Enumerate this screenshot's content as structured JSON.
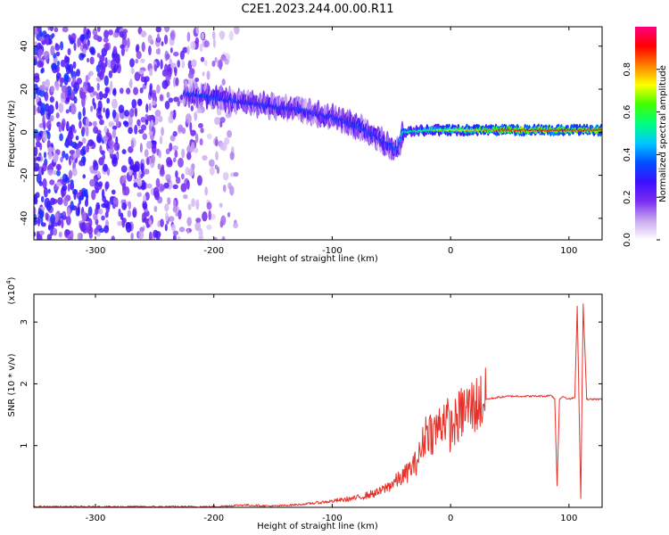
{
  "title": "C2E1.2023.244.00.00.R11",
  "colors": {
    "snr_line": "#e8312a",
    "colormap": [
      "#ffffff",
      "#c8a8f0",
      "#7a2cf0",
      "#3a10ff",
      "#0050ff",
      "#00c8ff",
      "#00ff80",
      "#40ff00",
      "#ffff00",
      "#ff8000",
      "#ff0000",
      "#ff0080"
    ]
  },
  "chart_data": [
    {
      "type": "heatmap",
      "title": "",
      "xlabel": "Height of straight line (km)",
      "ylabel": "Frequency (Hz)",
      "xlim": [
        -352,
        128
      ],
      "ylim": [
        -50,
        49
      ],
      "x_ticks": [
        -300,
        -200,
        -100,
        0,
        100
      ],
      "y_ticks": [
        -40,
        -20,
        0,
        20,
        40
      ],
      "colorbar": {
        "label": "Normalized spectral amplitude",
        "range": [
          0,
          1
        ],
        "ticks": [
          0.0,
          0.2,
          0.4,
          0.6,
          0.8
        ],
        "tick_labels": [
          "0.0",
          "0.2",
          "0.4",
          "0.6",
          "0.8"
        ]
      },
      "ridge": {
        "x": [
          -225,
          -200,
          -175,
          -150,
          -125,
          -100,
          -75,
          -55,
          -45,
          -40,
          -20,
          0,
          50,
          100,
          128
        ],
        "frequency": [
          18,
          16,
          14,
          12,
          10,
          7,
          2,
          -5,
          -8,
          0,
          1,
          1,
          1,
          1,
          1
        ],
        "amplitude": [
          0.3,
          0.35,
          0.3,
          0.3,
          0.3,
          0.3,
          0.35,
          0.3,
          0.35,
          0.5,
          0.6,
          0.7,
          0.9,
          0.9,
          0.9
        ]
      },
      "noise_region": {
        "x": [
          -352,
          -180
        ],
        "amplitude": 0.2
      }
    },
    {
      "type": "line",
      "title": "",
      "xlabel": "Height of straight line (km)",
      "ylabel": "SNR (10 * v/v)",
      "y_multiplier": "(x10",
      "y_multiplier_exp": "4",
      "y_multiplier_close": ")",
      "xlim": [
        -352,
        128
      ],
      "ylim": [
        0,
        3.45
      ],
      "x_ticks": [
        -300,
        -200,
        -100,
        0,
        100
      ],
      "y_ticks": [
        1,
        2,
        3
      ],
      "series": [
        {
          "x": [
            -352,
            -300,
            -250,
            -200,
            -175,
            -150,
            -125,
            -100,
            -80,
            -60,
            -40,
            -30,
            -25,
            -20,
            -15,
            -10,
            -5,
            0,
            5,
            10,
            15,
            20,
            30,
            40,
            50,
            60,
            70,
            80,
            85,
            88,
            90,
            92,
            95,
            100,
            105,
            107,
            110,
            112,
            115,
            120,
            128
          ],
          "values": [
            0.01,
            0.01,
            0.01,
            0.01,
            0.04,
            0.02,
            0.05,
            0.1,
            0.15,
            0.25,
            0.5,
            0.7,
            0.9,
            1.3,
            1.2,
            1.3,
            1.5,
            1.25,
            1.4,
            1.55,
            1.6,
            1.65,
            1.75,
            1.78,
            1.8,
            1.8,
            1.8,
            1.8,
            1.82,
            1.75,
            0.35,
            1.75,
            1.8,
            1.75,
            1.78,
            3.25,
            0.15,
            3.3,
            1.75,
            1.75,
            1.75
          ]
        }
      ]
    }
  ]
}
